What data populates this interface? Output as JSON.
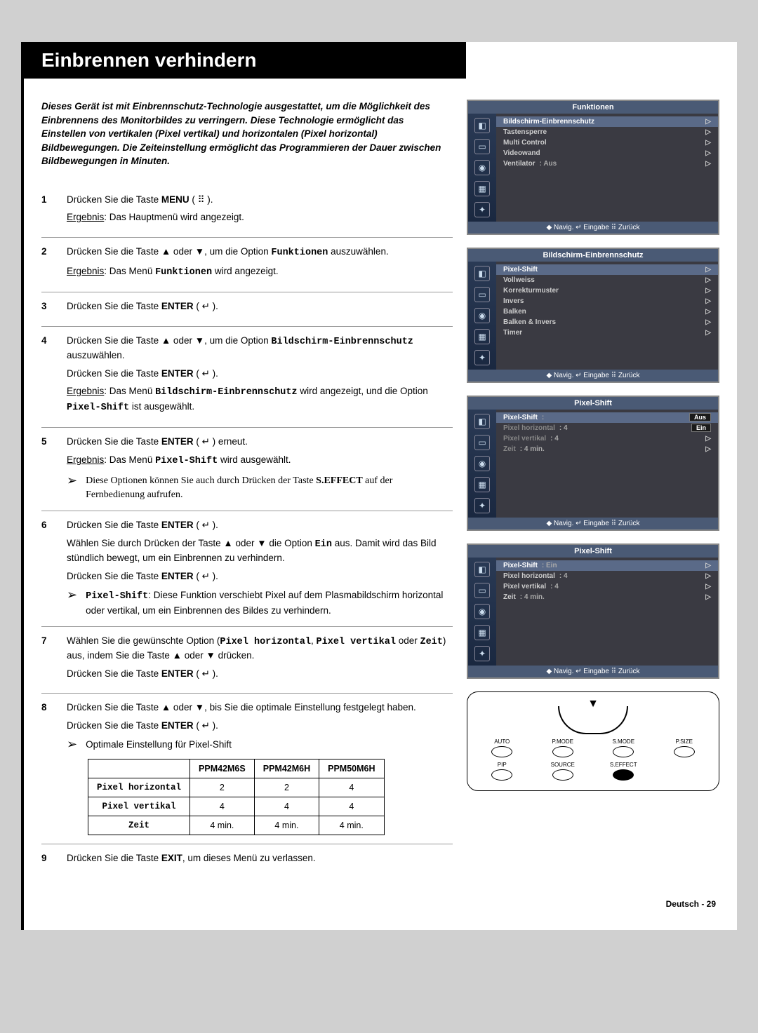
{
  "header": {
    "title": "Einbrennen verhindern"
  },
  "intro": "Dieses Gerät ist mit Einbrennschutz-Technologie ausgestattet, um die Möglichkeit des Einbrennens des Monitorbildes zu verringern. Diese Technologie ermöglicht das Einstellen von vertikalen (Pixel vertikal) und horizontalen (Pixel horizontal) Bildbewegungen. Die Zeiteinstellung ermöglicht das Programmieren der Dauer zwischen Bildbewegungen in Minuten.",
  "steps": {
    "1": {
      "line1a": "Drücken Sie die Taste ",
      "line1b": "MENU",
      "line1c": " ( ⠿ ).",
      "resultLabel": "Ergebnis",
      "result": ": Das Hauptmenü wird angezeigt."
    },
    "2": {
      "line1": "Drücken Sie die Taste ▲ oder ▼, um die Option ",
      "opt": "Funktionen",
      "line1b": " auszuwählen.",
      "resultLabel": "Ergebnis",
      "result_a": ": Das Menü ",
      "result_b": "Funktionen",
      "result_c": " wird angezeigt."
    },
    "3": {
      "line1a": "Drücken Sie die Taste ",
      "line1b": "ENTER",
      "line1c": " ( ↵ )."
    },
    "4": {
      "line1": "Drücken Sie die Taste ▲ oder ▼, um die Option ",
      "opt": "Bildschirm-Einbrennschutz",
      "line1b": " auszuwählen.",
      "line2a": "Drücken Sie die Taste ",
      "line2b": "ENTER",
      "line2c": " ( ↵ ).",
      "resultLabel": "Ergebnis",
      "result_a": ": Das Menü ",
      "result_b": "Bildschirm-Einbrennschutz",
      "result_c": " wird angezeigt, und die Option ",
      "result_d": "Pixel-Shift",
      "result_e": " ist ausgewählt."
    },
    "5": {
      "line1a": "Drücken Sie die Taste ",
      "line1b": "ENTER",
      "line1c": " ( ↵ ) erneut.",
      "resultLabel": "Ergebnis",
      "result_a": ": Das Menü ",
      "result_b": "Pixel-Shift",
      "result_c": " wird ausgewählt.",
      "note": "Diese Optionen können Sie auch durch Drücken der Taste ",
      "note_b": "S.EFFECT",
      "note_c": " auf der Fernbedienung aufrufen."
    },
    "6": {
      "line1a": "Drücken Sie die Taste ",
      "line1b": "ENTER",
      "line1c": " ( ↵ ).",
      "line2": "Wählen Sie durch Drücken der Taste ▲ oder ▼ die Option ",
      "opt": "Ein",
      "line2b": " aus. Damit wird das Bild stündlich bewegt, um ein Einbrennen zu verhindern.",
      "line3a": "Drücken Sie die Taste ",
      "line3b": "ENTER",
      "line3c": " ( ↵ ).",
      "note_a": "Pixel-Shift",
      "note_b": ": Diese Funktion verschiebt Pixel auf dem Plasmabildschirm horizontal oder vertikal, um ein Einbrennen des Bildes zu verhindern."
    },
    "7": {
      "line1": "Wählen Sie die gewünschte Option (",
      "opt1": "Pixel horizontal",
      "sep1": ", ",
      "opt2": "Pixel vertikal",
      "sep2": " oder ",
      "opt3": "Zeit",
      "line1b": ") aus, indem Sie die Taste ▲ oder ▼ drücken.",
      "line2a": "Drücken Sie die Taste ",
      "line2b": "ENTER",
      "line2c": " ( ↵ )."
    },
    "8": {
      "line1": "Drücken Sie die Taste ▲ oder ▼, bis Sie die optimale Einstellung festgelegt haben.",
      "line2a": "Drücken Sie die Taste ",
      "line2b": "ENTER",
      "line2c": " ( ↵ ).",
      "note": "Optimale Einstellung für Pixel-Shift"
    },
    "9": {
      "line1a": "Drücken Sie die Taste ",
      "line1b": "EXIT",
      "line1c": ", um dieses Menü zu verlassen."
    }
  },
  "table": {
    "cols": [
      "",
      "PPM42M6S",
      "PPM42M6H",
      "PPM50M6H"
    ],
    "rows": [
      [
        "Pixel horizontal",
        "2",
        "2",
        "4"
      ],
      [
        "Pixel vertikal",
        "4",
        "4",
        "4"
      ],
      [
        "Zeit",
        "4 min.",
        "4 min.",
        "4 min."
      ]
    ]
  },
  "osd": {
    "footer": "◆ Navig.    ↵ Eingabe  ⠿ Zurück",
    "menu1": {
      "title": "Funktionen",
      "items": [
        {
          "label": "Bildschirm-Einbrennschutz",
          "hl": true
        },
        {
          "label": "Tastensperre"
        },
        {
          "label": "Multi Control"
        },
        {
          "label": "Videowand"
        },
        {
          "label": "Ventilator",
          "val": ": Aus"
        }
      ]
    },
    "menu2": {
      "title": "Bildschirm-Einbrennschutz",
      "items": [
        {
          "label": "Pixel-Shift",
          "hl": true
        },
        {
          "label": "Vollweiss"
        },
        {
          "label": "Korrekturmuster"
        },
        {
          "label": "Invers"
        },
        {
          "label": "Balken"
        },
        {
          "label": "Balken & Invers"
        },
        {
          "label": "Timer"
        }
      ]
    },
    "menu3": {
      "title": "Pixel-Shift",
      "items": [
        {
          "label": "Pixel-Shift",
          "val": ":",
          "box1": "Aus",
          "hl": true
        },
        {
          "label": "Pixel horizontal",
          "val": ": 4",
          "box2": "Ein",
          "dim": true
        },
        {
          "label": "Pixel vertikal",
          "val": ": 4",
          "dim": true
        },
        {
          "label": "Zeit",
          "val": ": 4 min.",
          "dim": true
        }
      ]
    },
    "menu4": {
      "title": "Pixel-Shift",
      "items": [
        {
          "label": "Pixel-Shift",
          "val": ": Ein",
          "hl": true
        },
        {
          "label": "Pixel horizontal",
          "val": ": 4"
        },
        {
          "label": "Pixel vertikal",
          "val": ": 4"
        },
        {
          "label": "Zeit",
          "val": ": 4 min."
        }
      ]
    }
  },
  "remote": {
    "buttons_row1": [
      "AUTO",
      "P.MODE",
      "S.MODE",
      "P.SIZE"
    ],
    "buttons_row2": [
      "PIP",
      "SOURCE",
      "S.EFFECT"
    ],
    "highlight": "S.EFFECT"
  },
  "footer": "Deutsch - 29"
}
